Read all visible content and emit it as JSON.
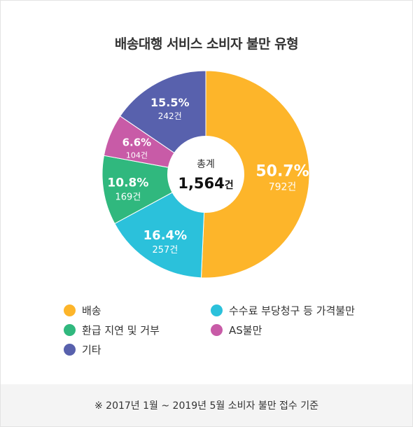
{
  "title": "배송대행 서비스 소비자 불만 유형",
  "center": {
    "label": "총계",
    "total": "1,564",
    "unit": "건"
  },
  "chart_data": {
    "type": "pie",
    "title": "배송대행 서비스 소비자 불만 유형",
    "slices": [
      {
        "name": "배송",
        "percent": 50.7,
        "count": 792,
        "pct_label": "50.7%",
        "count_label": "792건",
        "color": "#FDB52A"
      },
      {
        "name": "수수료 부당청구 등 가격불만",
        "percent": 16.4,
        "count": 257,
        "pct_label": "16.4%",
        "count_label": "257건",
        "color": "#2BC1DB"
      },
      {
        "name": "환급 지연 및 거부",
        "percent": 10.8,
        "count": 169,
        "pct_label": "10.8%",
        "count_label": "169건",
        "color": "#30B87E"
      },
      {
        "name": "AS불만",
        "percent": 6.6,
        "count": 104,
        "pct_label": "6.6%",
        "count_label": "104건",
        "color": "#C85BA7"
      },
      {
        "name": "기타",
        "percent": 15.5,
        "count": 242,
        "pct_label": "15.5%",
        "count_label": "242건",
        "color": "#5861AD"
      }
    ]
  },
  "legend": [
    {
      "label": "배송",
      "color": "#FDB52A"
    },
    {
      "label": "수수료 부당청구 등 가격불만",
      "color": "#2BC1DB"
    },
    {
      "label": "환급 지연 및 거부",
      "color": "#30B87E"
    },
    {
      "label": "AS불만",
      "color": "#C85BA7"
    },
    {
      "label": "기타",
      "color": "#5861AD"
    }
  ],
  "footer": "※ 2017년 1월 ~ 2019년 5월 소비자 불만 접수 기준"
}
